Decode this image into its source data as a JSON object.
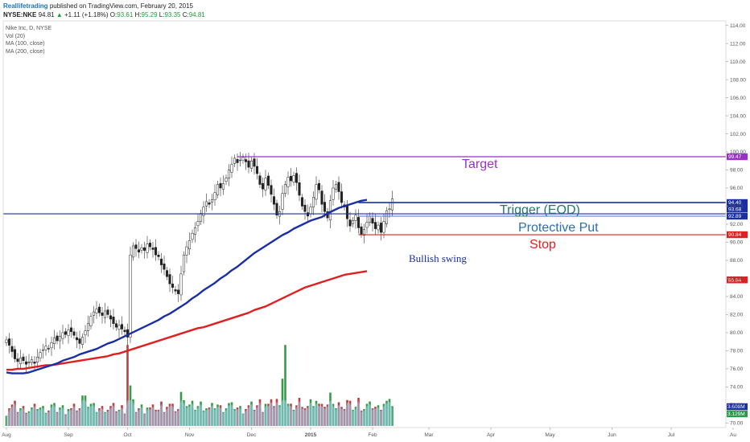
{
  "header": {
    "author": "Reallifetrading",
    "published": "published on TradingView.com, February 20, 2015",
    "symbol": "NYSE:NKE",
    "last": "94.81",
    "change": "+1.11 (+1.18%)",
    "open_label": "O:",
    "open": "93.61",
    "high_label": "H:",
    "high": "95.29",
    "low_label": "L:",
    "low": "93.35",
    "close_label": "C:",
    "close": "94.81"
  },
  "legend": {
    "title": "Nike Inc, D, NYSE",
    "vol": "Vol (20)",
    "ma100": "MA (100, close)",
    "ma200": "MA (200, close)"
  },
  "chart_data": {
    "type": "candlestick",
    "y_ticks": [
      "114.00",
      "112.00",
      "110.00",
      "108.00",
      "106.00",
      "104.00",
      "102.00",
      "100.00",
      "98.00",
      "96.00",
      "94.00",
      "92.00",
      "90.00",
      "88.00",
      "86.00",
      "84.00",
      "82.00",
      "80.00",
      "78.00",
      "76.00",
      "74.00",
      "72.00",
      "70.00"
    ],
    "ylim": [
      69.5,
      114.5
    ],
    "x_ticks": [
      "Aug",
      "Sep",
      "Oct",
      "Nov",
      "Dec",
      "2015",
      "Feb",
      "Mar",
      "Apr",
      "May",
      "Jun",
      "Jul",
      "Au"
    ],
    "x_tick_index": [
      0,
      22,
      43,
      65,
      87,
      108,
      130,
      150,
      172,
      193,
      215,
      236,
      258
    ],
    "closes": [
      79.2,
      78.6,
      77.9,
      77.1,
      76.8,
      77.2,
      76.9,
      76.5,
      76.7,
      77.0,
      76.6,
      77.3,
      77.8,
      78.1,
      78.5,
      78.2,
      78.9,
      79.4,
      79.1,
      79.6,
      80.0,
      79.8,
      80.3,
      80.1,
      79.7,
      79.2,
      78.8,
      79.5,
      80.2,
      81.0,
      81.8,
      82.3,
      82.6,
      82.2,
      81.9,
      82.4,
      82.0,
      81.5,
      81.0,
      80.6,
      80.8,
      80.4,
      80.1,
      79.5,
      88.6,
      89.6,
      89.3,
      88.9,
      89.4,
      89.1,
      89.8,
      89.5,
      89.2,
      88.6,
      88.4,
      87.5,
      87.0,
      86.2,
      85.4,
      85.0,
      84.6,
      84.3,
      86.5,
      88.6,
      89.5,
      90.2,
      91.0,
      91.6,
      92.3,
      93.2,
      93.9,
      94.5,
      94.2,
      94.7,
      95.5,
      96.4,
      96.0,
      96.5,
      97.1,
      98.0,
      98.6,
      99.3,
      98.8,
      99.1,
      99.4,
      98.9,
      98.3,
      99.0,
      98.4,
      97.6,
      96.4,
      95.9,
      97.1,
      96.3,
      95.3,
      94.2,
      93.0,
      93.4,
      95.4,
      96.4,
      97.2,
      96.8,
      97.4,
      96.6,
      95.2,
      94.0,
      93.4,
      92.9,
      93.9,
      95.0,
      96.4,
      95.8,
      94.2,
      93.4,
      92.7,
      94.6,
      96.0,
      96.4,
      95.6,
      94.4,
      93.9,
      92.6,
      91.8,
      92.4,
      93.0,
      91.6,
      90.9,
      91.4,
      92.2,
      92.9,
      92.1,
      91.5,
      91.9,
      91.1,
      92.3,
      93.5,
      93.7,
      94.8
    ],
    "ma100": [
      75.6,
      75.5,
      75.5,
      75.5,
      75.6,
      75.8,
      76.0,
      76.2,
      76.4,
      76.6,
      76.9,
      77.1,
      77.3,
      77.6,
      77.8,
      78.0,
      78.2,
      78.5,
      78.8,
      79.0,
      79.3,
      79.6,
      79.9,
      80.2,
      80.5,
      80.8,
      81.1,
      81.4,
      81.8,
      82.1,
      82.5,
      82.9,
      83.3,
      83.8,
      84.2,
      84.7,
      85.1,
      85.5,
      86.0,
      86.4,
      86.9,
      87.3,
      87.8,
      88.3,
      88.8,
      89.2,
      89.6,
      90.0,
      90.4,
      90.8,
      91.1,
      91.5,
      91.8,
      92.1,
      92.4,
      92.6,
      92.8,
      93.2,
      93.5,
      93.8,
      94.0,
      94.2,
      94.4,
      94.6,
      94.7
    ],
    "ma100_start_index": 0,
    "ma100_step": 2,
    "ma200": [
      75.9,
      75.9,
      76.0,
      76.0,
      76.1,
      76.2,
      76.3,
      76.4,
      76.4,
      76.5,
      76.6,
      76.7,
      76.8,
      76.9,
      77.0,
      77.1,
      77.2,
      77.3,
      77.4,
      77.6,
      77.7,
      77.9,
      78.1,
      78.3,
      78.5,
      78.7,
      78.9,
      79.1,
      79.3,
      79.5,
      79.7,
      79.9,
      80.1,
      80.3,
      80.5,
      80.6,
      80.8,
      81.0,
      81.2,
      81.4,
      81.6,
      81.8,
      82.0,
      82.2,
      82.5,
      82.7,
      82.9,
      83.2,
      83.5,
      83.8,
      84.1,
      84.4,
      84.7,
      85.0,
      85.2,
      85.4,
      85.6,
      85.8,
      86.0,
      86.2,
      86.4,
      86.5,
      86.6,
      86.7,
      86.8
    ],
    "ma200_start_index": 0,
    "ma200_step": 2,
    "volume_ylim": [
      0,
      12
    ],
    "volume_note": "volume panel overlays the lower price area",
    "vol_ticks": [
      "3.608M",
      "3.129M"
    ],
    "levels": [
      {
        "name": "Target",
        "value": 99.47,
        "label": "99.47",
        "color": "#9b30c8"
      },
      {
        "name": "Trigger (EOD)",
        "value": 94.4,
        "label": "94.40",
        "color": "#1a2fa6"
      },
      {
        "name": "Protective Put",
        "value": 93.68,
        "label": "93.68",
        "color": "#1a2fa6"
      },
      {
        "name": "Protective Put lower",
        "value": 92.89,
        "label": "92.89",
        "color": "#1a2fa6"
      },
      {
        "name": "Stop",
        "value": 90.84,
        "label": "90.84",
        "color": "#e02020"
      },
      {
        "name": "MA200",
        "value": 85.84,
        "label": "85.84",
        "color": "#e02020"
      }
    ],
    "annotations": {
      "target": "Target",
      "trigger": "Trigger (EOD)",
      "put": "Protective Put",
      "stop": "Stop",
      "swing": "Bullish swing"
    },
    "colors": {
      "ma100": "#1a2fa6",
      "ma200": "#e02020",
      "vol_up": "#3a9a4a",
      "vol_down": "#b84040",
      "vol_ma": "#9fd3f2",
      "target": "#9b30c8",
      "trigger": "#1f7a6e",
      "put": "#2a6fb0",
      "stop": "#e02020",
      "swing": "#1a2fa6"
    }
  }
}
